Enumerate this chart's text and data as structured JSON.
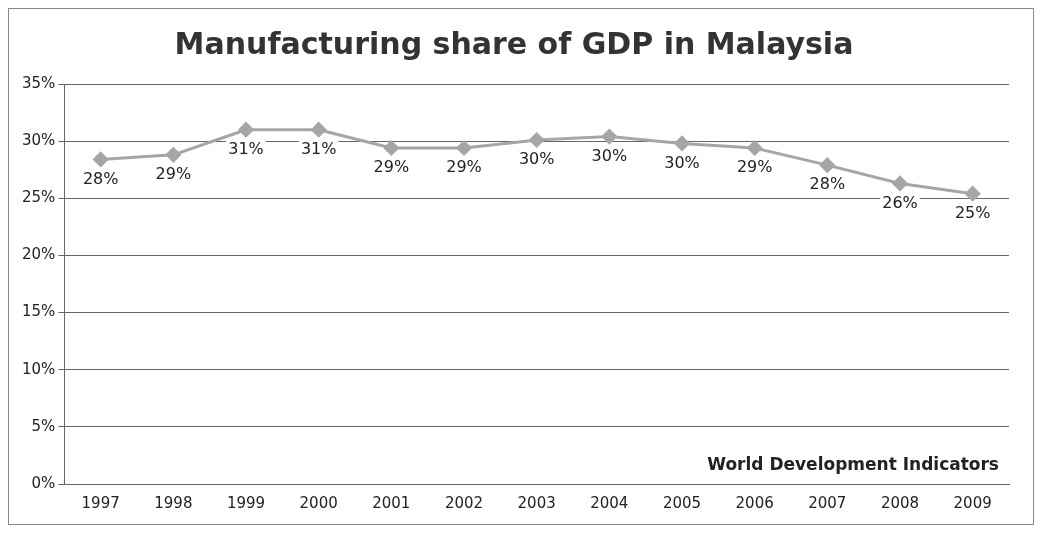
{
  "chart_data": {
    "type": "line",
    "title": "Manufacturing share of GDP in Malaysia",
    "categories": [
      "1997",
      "1998",
      "1999",
      "2000",
      "2001",
      "2002",
      "2003",
      "2004",
      "2005",
      "2006",
      "2007",
      "2008",
      "2009"
    ],
    "series": [
      {
        "color": "#a6a6a6",
        "values": [
          28.4,
          28.8,
          31.0,
          31.0,
          29.4,
          29.4,
          30.1,
          30.4,
          29.8,
          29.4,
          27.9,
          26.3,
          25.4
        ],
        "value_labels": [
          "28%",
          "29%",
          "31%",
          "31%",
          "29%",
          "29%",
          "30%",
          "30%",
          "30%",
          "29%",
          "28%",
          "26%",
          "25%"
        ]
      }
    ],
    "ylim": [
      0,
      35
    ],
    "yticks": [
      {
        "value": 0,
        "label": "0%"
      },
      {
        "value": 5,
        "label": "5%"
      },
      {
        "value": 10,
        "label": "10%"
      },
      {
        "value": 15,
        "label": "15%"
      },
      {
        "value": 20,
        "label": "20%"
      },
      {
        "value": 25,
        "label": "25%"
      },
      {
        "value": 30,
        "label": "30%"
      },
      {
        "value": 35,
        "label": "35%"
      }
    ],
    "grid": "y",
    "legend": false,
    "marker": "diamond",
    "line_style": "solid",
    "annotations": [
      "World Development Indicators"
    ]
  }
}
